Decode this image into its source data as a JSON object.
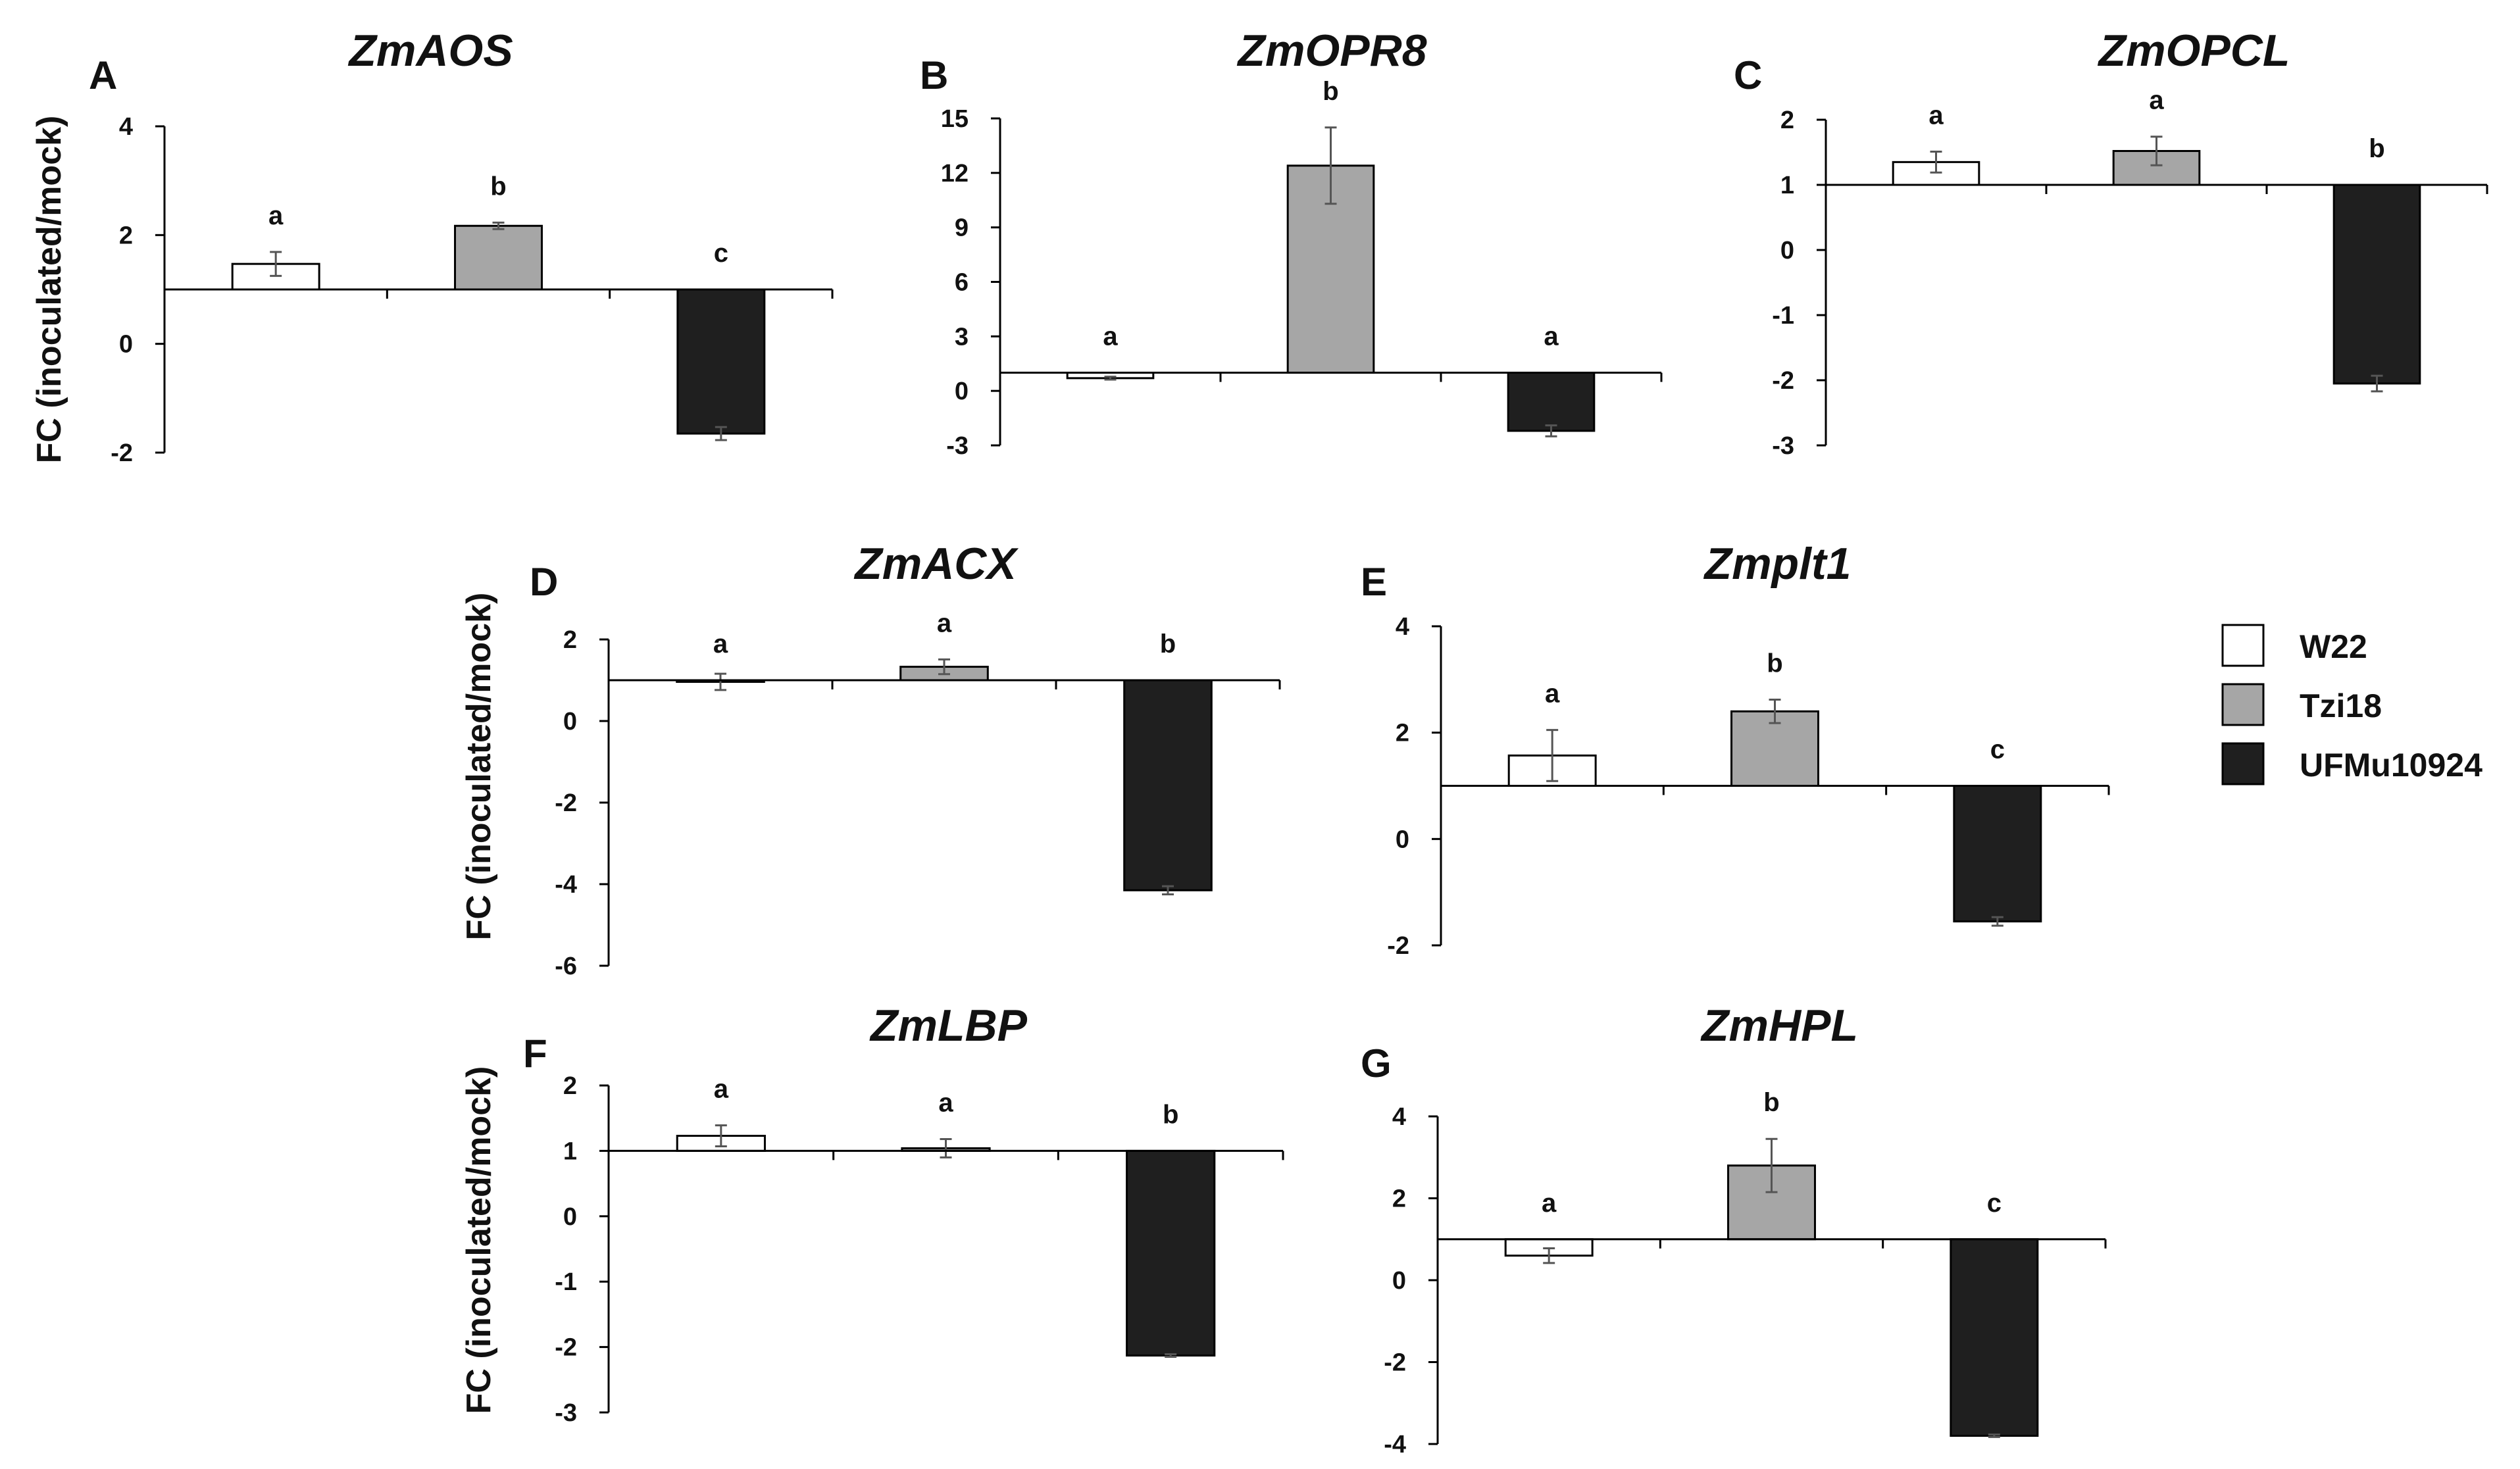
{
  "colors": {
    "W22": "#ffffff",
    "Tzi18": "#a6a6a6",
    "UFMu10924": "#1f1f1f",
    "axis": "#000000",
    "error_bar": "#555555"
  },
  "legend": [
    {
      "name": "W22",
      "color": "#ffffff"
    },
    {
      "name": "Tzi18",
      "color": "#a6a6a6"
    },
    {
      "name": "UFMu10924",
      "color": "#1f1f1f"
    }
  ],
  "ylabel": "FC (inoculated/mock)",
  "chart_data": [
    {
      "type": "bar",
      "panel": "A",
      "title": "ZmAOS",
      "ylabel": "FC (inoculated/mock)",
      "categories": [
        "W22",
        "Tzi18",
        "UFMu10924"
      ],
      "baseline": 1,
      "yticks": [
        4,
        2,
        0,
        -2
      ],
      "ylim": [
        -2,
        4
      ],
      "values": [
        1.47,
        2.17,
        -1.65
      ],
      "errors": [
        0.22,
        0.06,
        0.12
      ],
      "letters": [
        "a",
        "b",
        "c"
      ]
    },
    {
      "type": "bar",
      "panel": "B",
      "title": "ZmOPR8",
      "ylabel": "",
      "categories": [
        "W22",
        "Tzi18",
        "UFMu10924"
      ],
      "baseline": 1,
      "yticks": [
        15,
        12,
        9,
        6,
        3,
        0,
        -3
      ],
      "ylim": [
        -3,
        15
      ],
      "values": [
        0.7,
        12.4,
        -2.2
      ],
      "errors": [
        0.08,
        2.1,
        0.3
      ],
      "letters": [
        "a",
        "b",
        "a"
      ]
    },
    {
      "type": "bar",
      "panel": "C",
      "title": "ZmOPCL",
      "ylabel": "",
      "categories": [
        "W22",
        "Tzi18",
        "UFMu10924"
      ],
      "baseline": 1,
      "yticks": [
        2,
        1,
        0,
        -1,
        -2,
        -3
      ],
      "ylim": [
        -3,
        2
      ],
      "values": [
        1.35,
        1.52,
        -2.05
      ],
      "errors": [
        0.16,
        0.22,
        0.12
      ],
      "letters": [
        "a",
        "a",
        "b"
      ]
    },
    {
      "type": "bar",
      "panel": "D",
      "title": "ZmACX",
      "ylabel": "FC (inoculated/mock)",
      "categories": [
        "W22",
        "Tzi18",
        "UFMu10924"
      ],
      "baseline": 1,
      "yticks": [
        2,
        0,
        -2,
        -4,
        -6
      ],
      "ylim": [
        -6,
        2
      ],
      "values": [
        0.96,
        1.33,
        -4.15
      ],
      "errors": [
        0.2,
        0.18,
        0.1
      ],
      "letters": [
        "a",
        "a",
        "b"
      ]
    },
    {
      "type": "bar",
      "panel": "E",
      "title": "Zmplt1",
      "ylabel": "",
      "categories": [
        "W22",
        "Tzi18",
        "UFMu10924"
      ],
      "baseline": 1,
      "yticks": [
        4,
        2,
        0,
        -2
      ],
      "ylim": [
        -2,
        4
      ],
      "values": [
        1.57,
        2.4,
        -1.55
      ],
      "errors": [
        0.48,
        0.22,
        0.08
      ],
      "letters": [
        "a",
        "b",
        "c"
      ]
    },
    {
      "type": "bar",
      "panel": "F",
      "title": "ZmLBP",
      "ylabel": "FC (inoculated/mock)",
      "categories": [
        "W22",
        "Tzi18",
        "UFMu10924"
      ],
      "baseline": 1,
      "yticks": [
        2,
        1,
        0,
        -1,
        -2,
        -3
      ],
      "ylim": [
        -3,
        2
      ],
      "values": [
        1.23,
        1.04,
        -2.13
      ],
      "errors": [
        0.16,
        0.14,
        0.02
      ],
      "letters": [
        "a",
        "a",
        "b"
      ]
    },
    {
      "type": "bar",
      "panel": "G",
      "title": "ZmHPL",
      "ylabel": "",
      "categories": [
        "W22",
        "Tzi18",
        "UFMu10924"
      ],
      "baseline": 1,
      "yticks": [
        4,
        2,
        0,
        -2,
        -4
      ],
      "ylim": [
        -4,
        4
      ],
      "values": [
        0.6,
        2.8,
        -3.8
      ],
      "errors": [
        0.18,
        0.65,
        0.03
      ],
      "letters": [
        "a",
        "b",
        "c"
      ]
    }
  ]
}
